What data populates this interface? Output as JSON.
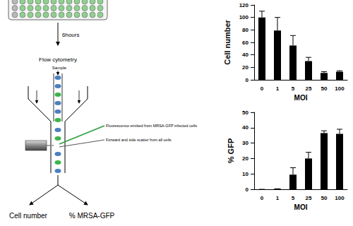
{
  "chart_data": [
    {
      "type": "bar",
      "ylabel": "Cell number",
      "xlabel": "MOI",
      "categories": [
        "0",
        "1",
        "5",
        "25",
        "50",
        "100"
      ],
      "values": [
        100,
        79,
        55,
        30,
        11,
        13
      ],
      "errors": [
        10,
        21,
        16,
        6,
        2,
        1.5
      ],
      "color": "#000000",
      "ylim": [
        0,
        120
      ],
      "yticks": [
        0,
        20,
        40,
        60,
        80,
        100,
        120
      ],
      "grid": false
    },
    {
      "type": "bar",
      "ylabel": "% GFP",
      "xlabel": "MOI",
      "categories": [
        "0",
        "1",
        "5",
        "25",
        "50",
        "100"
      ],
      "values": [
        0,
        0.3,
        9.5,
        20,
        36.5,
        36
      ],
      "errors": [
        0,
        0,
        4.5,
        4,
        1.5,
        3
      ],
      "color": "#000000",
      "ylim": [
        0,
        50
      ],
      "yticks": [
        0,
        10,
        20,
        30,
        40,
        50
      ],
      "grid": false
    }
  ],
  "diagram": {
    "arrow_label": "6hours",
    "method": "Flow cytometry",
    "input_label": "Sample",
    "annotations": [
      "Fluorescence emitted from MRSA-GFP infected cells",
      "Forward and side scatter from all cells"
    ],
    "outputs": [
      "Cell number",
      "% MRSA-GFP"
    ]
  }
}
